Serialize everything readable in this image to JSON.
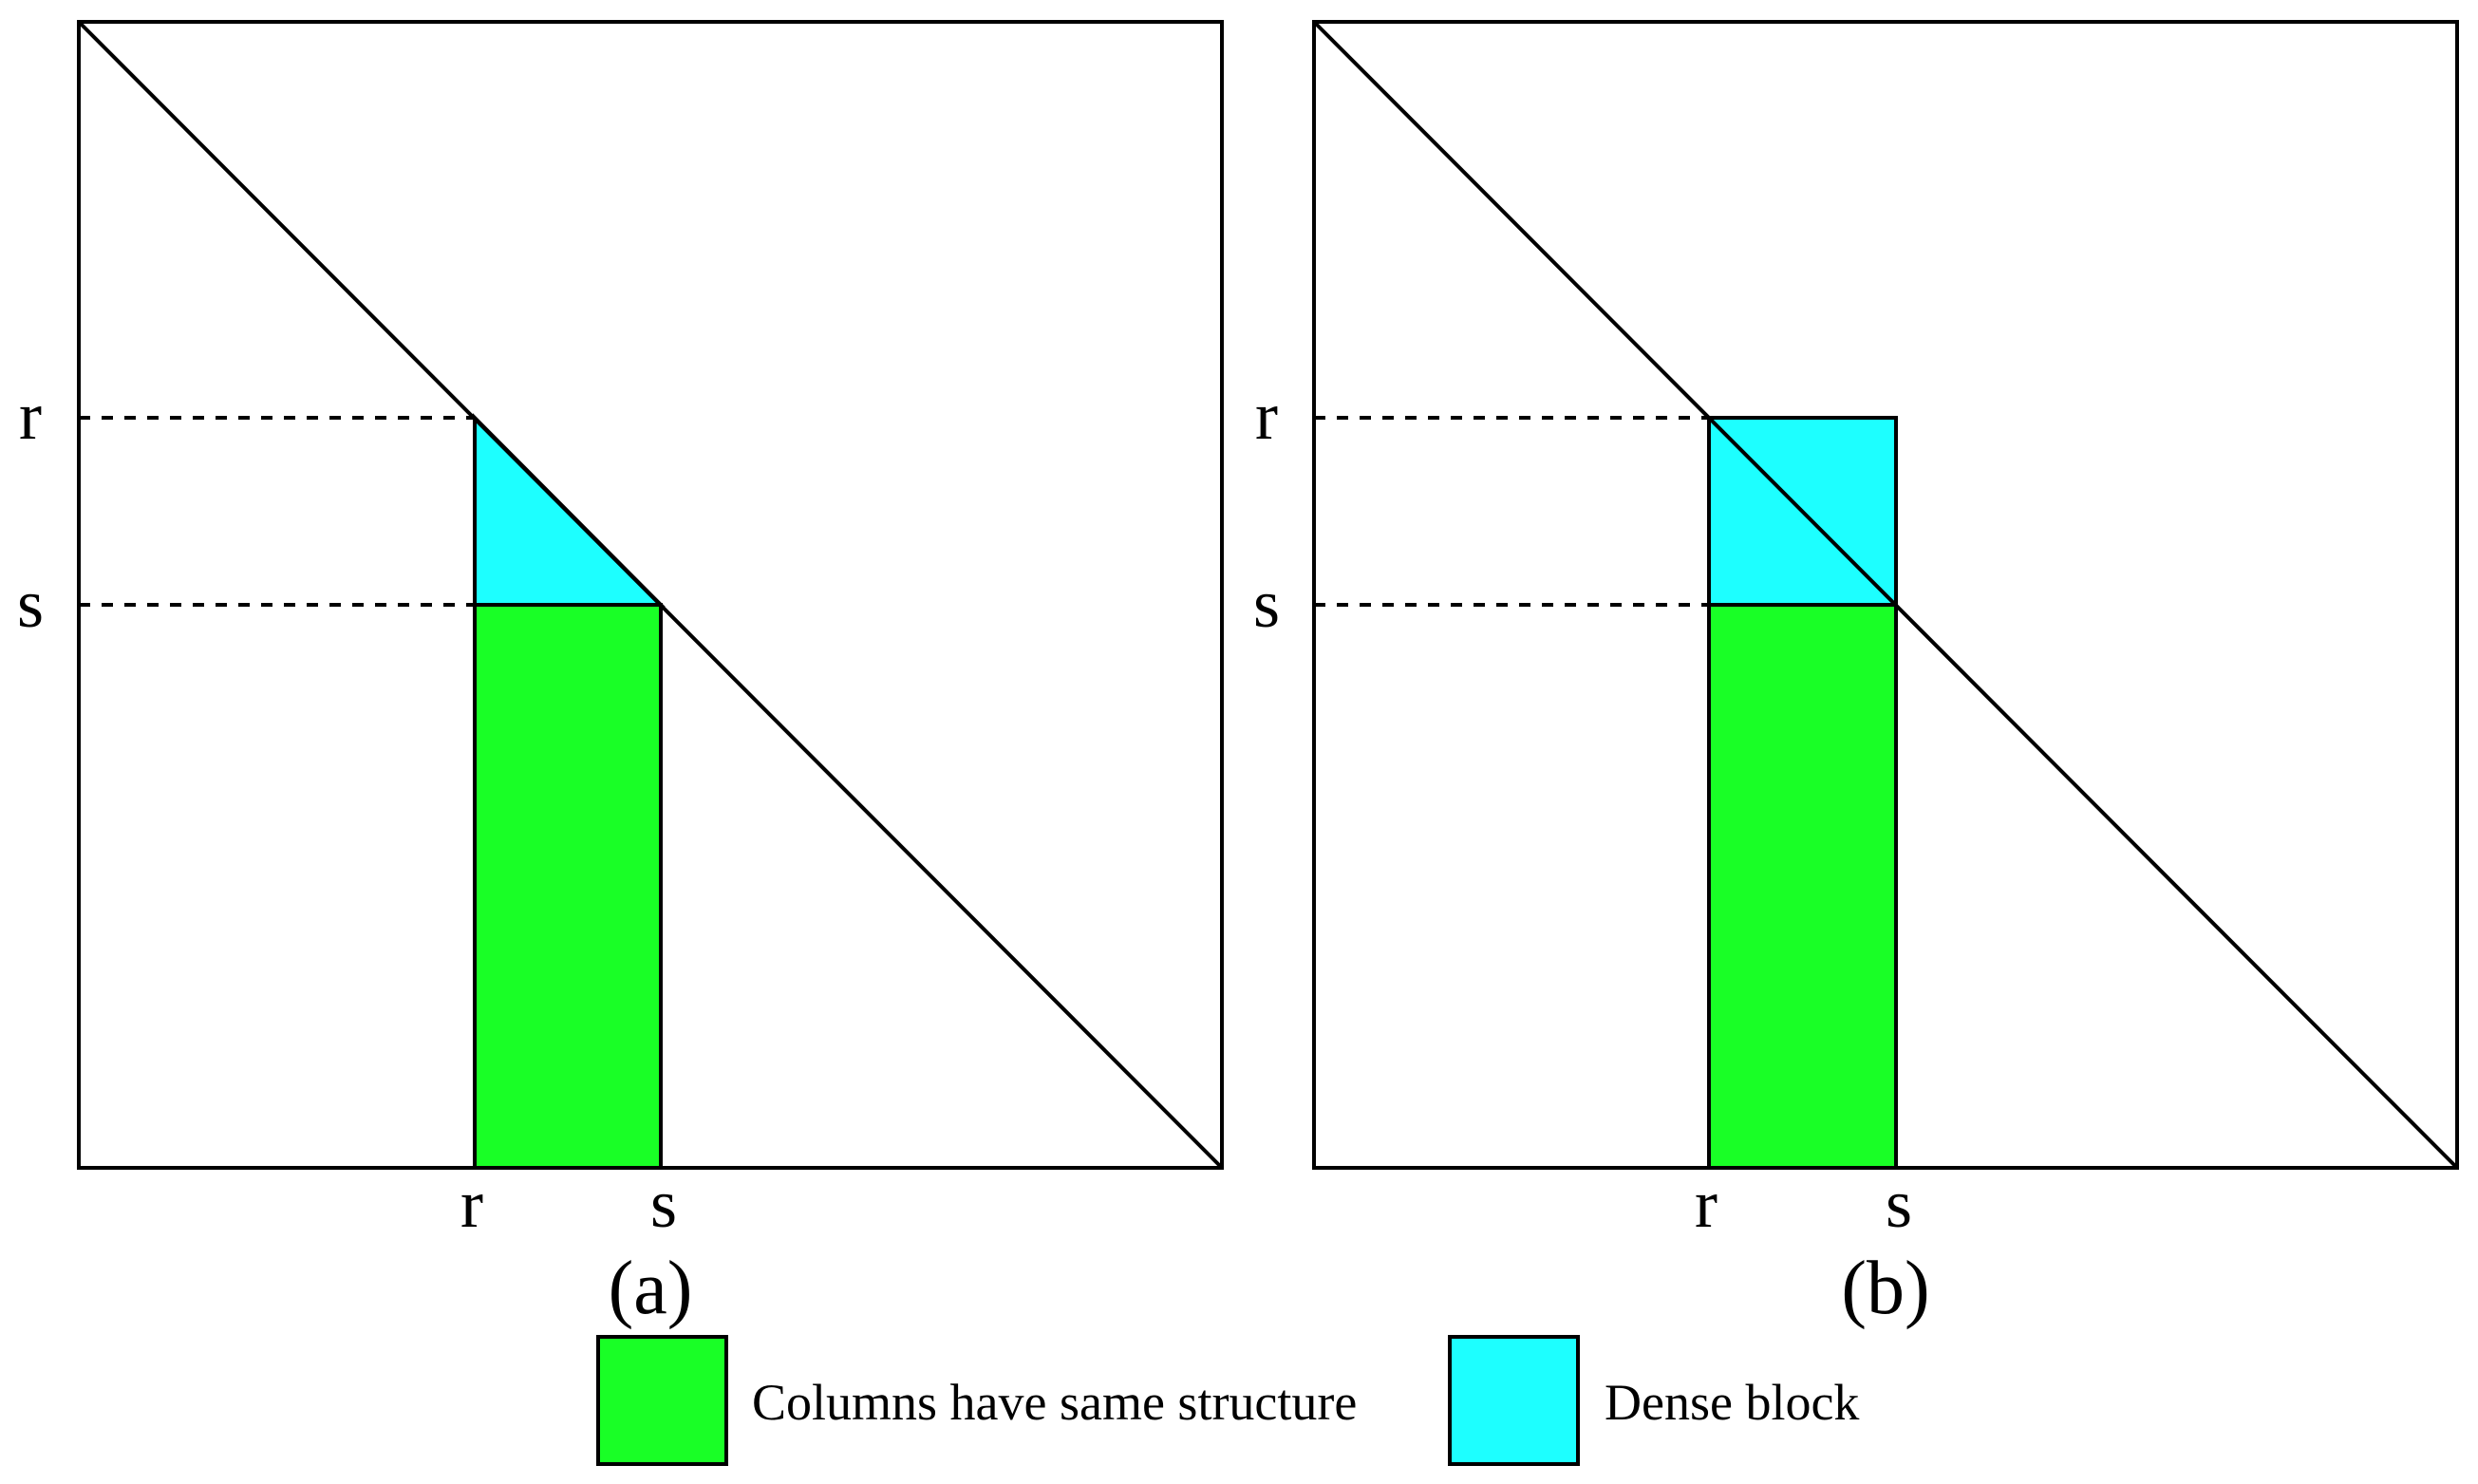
{
  "colors": {
    "green": "#19ff26",
    "cyan": "#1dffff",
    "stroke": "#000000",
    "background": "#ffffff"
  },
  "panels": [
    {
      "caption": "(a)",
      "row_labels": [
        "r",
        "s"
      ],
      "col_labels": [
        "r",
        "s"
      ]
    },
    {
      "caption": "(b)",
      "row_labels": [
        "r",
        "s"
      ],
      "col_labels": [
        "r",
        "s"
      ]
    }
  ],
  "legend": [
    {
      "label": "Columns have same structure",
      "color": "#19ff26"
    },
    {
      "label": "Dense block",
      "color": "#1dffff"
    }
  ]
}
